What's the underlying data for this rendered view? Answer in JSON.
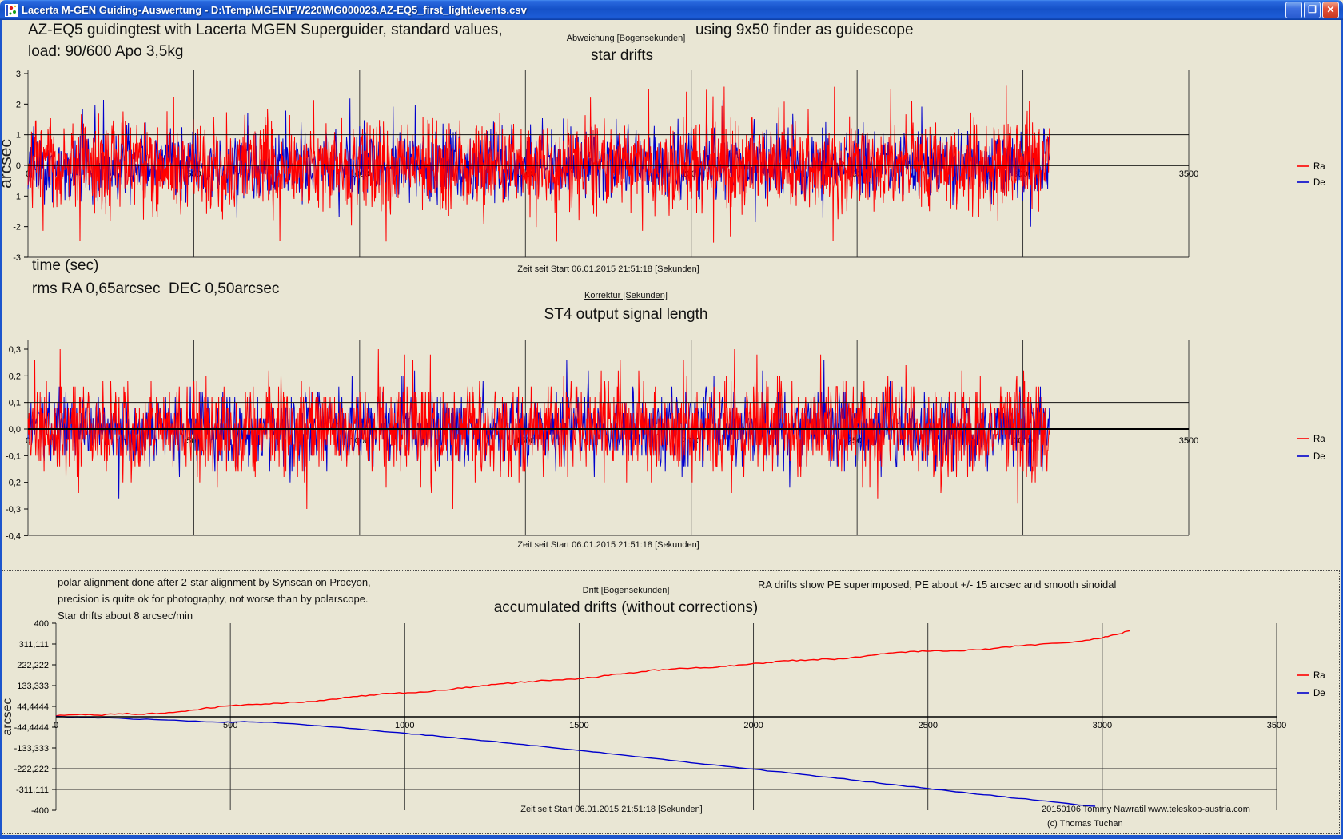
{
  "window": {
    "title": "Lacerta M-GEN Guiding-Auswertung - D:\\Temp\\MGEN\\FW220\\MG000023.AZ-EQ5_first_light\\events.csv",
    "controls": {
      "minimize_glyph": "_",
      "restore_glyph": "❐",
      "close_glyph": "✕"
    }
  },
  "annotations": {
    "top_left_line1": "AZ-EQ5 guidingtest with Lacerta MGEN Superguider, standard values,",
    "top_left_line2": "load: 90/600 Apo 3,5kg",
    "top_right": "using 9x50 finder as guidescope",
    "time_axis_note": "time (sec)",
    "rms_note": "rms RA 0,65arcsec  DEC 0,50arcsec",
    "panel_note_line1": "polar alignment done after 2-star alignment by Synscan on Procyon,",
    "panel_note_line2": "precision is quite ok for photography, not worse than by polarscope.",
    "panel_note_line3": "Star drifts about 8 arcsec/min",
    "panel_right_note": "RA drifts show PE superimposed, PE about +/- 15 arcsec and smooth sinoidal",
    "credit": "20150106 Tommy Nawratil www.teleskop-austria.com",
    "copyright": "(c) Thomas Tuchan"
  },
  "chart_data": [
    {
      "type": "line",
      "subtitle": "Abweichung [Bogensekunden]",
      "title": "star drifts",
      "xlabel": "Zeit seit Start 06.01.2015 21:51:18 [Sekunden]",
      "ylabel": "arcsec",
      "xlim": [
        0,
        3500
      ],
      "ylim": [
        -3,
        3.1
      ],
      "grid": "vertical",
      "legend_position": "right",
      "x_ticks": [
        0,
        500,
        1000,
        1500,
        2000,
        2500,
        3000,
        3500
      ],
      "y_ticks": [
        {
          "v": 3,
          "label": "3"
        },
        {
          "v": 2,
          "label": "2"
        },
        {
          "v": 1,
          "label": "1"
        },
        {
          "v": 0,
          "label": "0"
        },
        {
          "v": -1,
          "label": "-1"
        },
        {
          "v": -2,
          "label": "-2"
        },
        {
          "v": -3,
          "label": "-3"
        }
      ],
      "ref_line": 1,
      "legend": [
        {
          "label": "Ra",
          "color": "#ff0000"
        },
        {
          "label": "De",
          "color": "#0000cc"
        }
      ],
      "series": [
        {
          "name": "De",
          "color": "#0000cc",
          "gen": "noise",
          "rms": 0.5,
          "peak": 2.2,
          "seed": 23,
          "n": 1800,
          "x_data_max": 3080
        },
        {
          "name": "Ra",
          "color": "#ff0000",
          "gen": "noise",
          "rms": 0.65,
          "peak": 2.6,
          "seed": 7,
          "n": 2300,
          "x_data_max": 3080
        }
      ]
    },
    {
      "type": "line",
      "subtitle": "Korrektur [Sekunden]",
      "title": "ST4 output signal length",
      "xlabel": "Zeit seit Start 06.01.2015 21:51:18 [Sekunden]",
      "ylabel": "",
      "xlim": [
        0,
        3500
      ],
      "ylim": [
        -0.42,
        0.34
      ],
      "grid": "vertical",
      "legend_position": "right",
      "x_ticks": [
        0,
        500,
        1000,
        1500,
        2000,
        2500,
        3000,
        3500
      ],
      "y_ticks": [
        {
          "v": 0.3,
          "label": "0,3"
        },
        {
          "v": 0.2,
          "label": "0,2"
        },
        {
          "v": 0.1,
          "label": "0,1"
        },
        {
          "v": 0.0,
          "label": "0,0"
        },
        {
          "v": -0.1,
          "label": "-0,1"
        },
        {
          "v": -0.2,
          "label": "-0,2"
        },
        {
          "v": -0.3,
          "label": "-0,3"
        },
        {
          "v": -0.4,
          "label": "-0,4"
        }
      ],
      "ref_line": 0.1,
      "legend": [
        {
          "label": "Ra",
          "color": "#ff0000"
        },
        {
          "label": "De",
          "color": "#0000cc"
        }
      ],
      "series": [
        {
          "name": "De",
          "color": "#0000cc",
          "gen": "noise",
          "rms": 0.06,
          "peak": 0.27,
          "seed": 9,
          "n": 1700,
          "x_data_max": 3080,
          "quant": 0.02
        },
        {
          "name": "Ra",
          "color": "#ff0000",
          "gen": "noise",
          "rms": 0.075,
          "peak": 0.31,
          "seed": 5,
          "n": 2100,
          "x_data_max": 3080,
          "quant": 0.02
        }
      ]
    },
    {
      "type": "line",
      "subtitle": "Drift [Bogensekunden]",
      "title": "accumulated drifts (without corrections)",
      "xlabel": "Zeit seit Start 06.01.2015 21:51:18 [Sekunden]",
      "ylabel": "arcsec",
      "xlim": [
        0,
        3500
      ],
      "ylim": [
        -400,
        400
      ],
      "grid": "vertical",
      "legend_position": "right",
      "x_ticks": [
        0,
        500,
        1000,
        1500,
        2000,
        2500,
        3000,
        3500
      ],
      "y_ticks": [
        {
          "v": 400,
          "label": "400"
        },
        {
          "v": 311.111,
          "label": "311,111"
        },
        {
          "v": 222.222,
          "label": "222,222"
        },
        {
          "v": 133.333,
          "label": "133,333"
        },
        {
          "v": 44.4444,
          "label": "44,4444"
        },
        {
          "v": -44.4444,
          "label": "-44,4444"
        },
        {
          "v": -133.333,
          "label": "-133,333"
        },
        {
          "v": -222.222,
          "label": "-222,222"
        },
        {
          "v": -311.111,
          "label": "-311,111"
        },
        {
          "v": -400,
          "label": "-400"
        }
      ],
      "ref_line": null,
      "extra_hlines": [
        -222.222,
        -311.111
      ],
      "legend": [
        {
          "label": "Ra",
          "color": "#ff0000"
        },
        {
          "label": "De",
          "color": "#0000cc"
        }
      ],
      "series": [
        {
          "name": "Ra",
          "color": "#ff0000",
          "gen": "points",
          "seed": 41,
          "jitter": 3,
          "points": [
            [
              0,
              4
            ],
            [
              60,
              9
            ],
            [
              120,
              7
            ],
            [
              180,
              13
            ],
            [
              240,
              11
            ],
            [
              300,
              15
            ],
            [
              360,
              23
            ],
            [
              420,
              35
            ],
            [
              480,
              45
            ],
            [
              540,
              51
            ],
            [
              600,
              55
            ],
            [
              660,
              59
            ],
            [
              720,
              65
            ],
            [
              780,
              73
            ],
            [
              840,
              83
            ],
            [
              900,
              93
            ],
            [
              960,
              99
            ],
            [
              1020,
              103
            ],
            [
              1080,
              109
            ],
            [
              1140,
              119
            ],
            [
              1200,
              129
            ],
            [
              1260,
              138
            ],
            [
              1320,
              146
            ],
            [
              1380,
              153
            ],
            [
              1440,
              158
            ],
            [
              1500,
              163
            ],
            [
              1560,
              172
            ],
            [
              1620,
              183
            ],
            [
              1680,
              193
            ],
            [
              1740,
              202
            ],
            [
              1800,
              207
            ],
            [
              1860,
              210
            ],
            [
              1920,
              215
            ],
            [
              1980,
              223
            ],
            [
              2040,
              232
            ],
            [
              2100,
              239
            ],
            [
              2160,
              243
            ],
            [
              2220,
              246
            ],
            [
              2280,
              253
            ],
            [
              2340,
              263
            ],
            [
              2400,
              273
            ],
            [
              2460,
              280
            ],
            [
              2520,
              283
            ],
            [
              2580,
              282
            ],
            [
              2640,
              286
            ],
            [
              2700,
              294
            ],
            [
              2760,
              303
            ],
            [
              2820,
              310
            ],
            [
              2880,
              315
            ],
            [
              2940,
              323
            ],
            [
              3000,
              337
            ],
            [
              3040,
              351
            ],
            [
              3080,
              368
            ]
          ]
        },
        {
          "name": "De",
          "color": "#0000cc",
          "gen": "points",
          "seed": 77,
          "jitter": 1.8,
          "points": [
            [
              0,
              2
            ],
            [
              100,
              -3
            ],
            [
              200,
              -8
            ],
            [
              300,
              -13
            ],
            [
              400,
              -18
            ],
            [
              480,
              -24
            ],
            [
              540,
              -20
            ],
            [
              600,
              -23
            ],
            [
              700,
              -32
            ],
            [
              800,
              -44
            ],
            [
              900,
              -57
            ],
            [
              1000,
              -70
            ],
            [
              1100,
              -84
            ],
            [
              1200,
              -98
            ],
            [
              1300,
              -113
            ],
            [
              1400,
              -128
            ],
            [
              1500,
              -144
            ],
            [
              1600,
              -160
            ],
            [
              1700,
              -176
            ],
            [
              1800,
              -192
            ],
            [
              1900,
              -208
            ],
            [
              2000,
              -224
            ],
            [
              2100,
              -240
            ],
            [
              2200,
              -257
            ],
            [
              2300,
              -273
            ],
            [
              2400,
              -290
            ],
            [
              2500,
              -307
            ],
            [
              2600,
              -323
            ],
            [
              2700,
              -340
            ],
            [
              2800,
              -356
            ],
            [
              2900,
              -371
            ],
            [
              2980,
              -383
            ]
          ]
        }
      ]
    }
  ]
}
